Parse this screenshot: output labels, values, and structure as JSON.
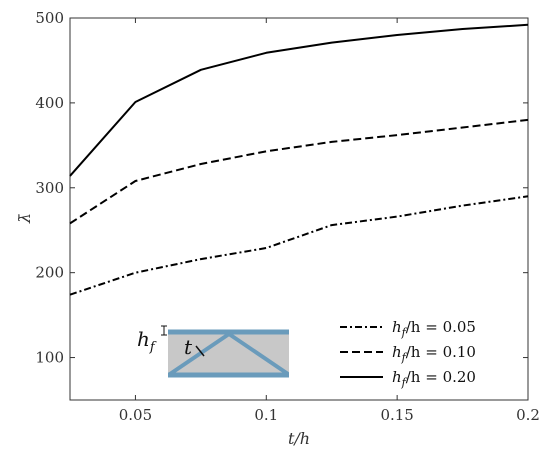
{
  "chart_data": {
    "type": "line",
    "title": "",
    "xlabel": "t/h",
    "ylabel": "λ̄",
    "xlim": [
      0.025,
      0.2
    ],
    "ylim": [
      50,
      500
    ],
    "grid": false,
    "legend_position": "bottom-right",
    "x_ticks": [
      0.05,
      0.1,
      0.15,
      0.2
    ],
    "x_tick_labels": [
      "0.05",
      "0.1",
      "0.15",
      "0.2"
    ],
    "y_ticks": [
      100,
      200,
      300,
      400,
      500
    ],
    "y_tick_labels": [
      "100",
      "200",
      "300",
      "400",
      "500"
    ],
    "series": [
      {
        "name": "h_f/h = 0.05",
        "dash": "dash-dot",
        "x": [
          0.025,
          0.05,
          0.075,
          0.1,
          0.125,
          0.15,
          0.175,
          0.2
        ],
        "y": [
          174,
          200,
          216,
          229,
          256,
          266,
          279,
          290
        ]
      },
      {
        "name": "h_f/h = 0.10",
        "dash": "dashed",
        "x": [
          0.025,
          0.05,
          0.075,
          0.1,
          0.125,
          0.15,
          0.175,
          0.2
        ],
        "y": [
          258,
          308,
          328,
          343,
          354,
          362,
          371,
          380
        ]
      },
      {
        "name": "h_f/h = 0.20",
        "dash": "solid",
        "x": [
          0.025,
          0.05,
          0.075,
          0.1,
          0.125,
          0.15,
          0.175,
          0.2
        ],
        "y": [
          314,
          401,
          439,
          459,
          471,
          480,
          487,
          492
        ]
      }
    ],
    "legend": [
      {
        "math": "h",
        "sub": "f",
        "rest": "/h = 0.05"
      },
      {
        "math": "h",
        "sub": "f",
        "rest": "/h = 0.10"
      },
      {
        "math": "h",
        "sub": "f",
        "rest": "/h = 0.20"
      }
    ]
  },
  "inset": {
    "label_hf_main": "h",
    "label_hf_sub": "f",
    "label_t": "t",
    "core_color": "#c8c8c8",
    "face_color": "#6a9bbb"
  },
  "colors": {
    "axis": "#333333",
    "line": "#000000"
  }
}
